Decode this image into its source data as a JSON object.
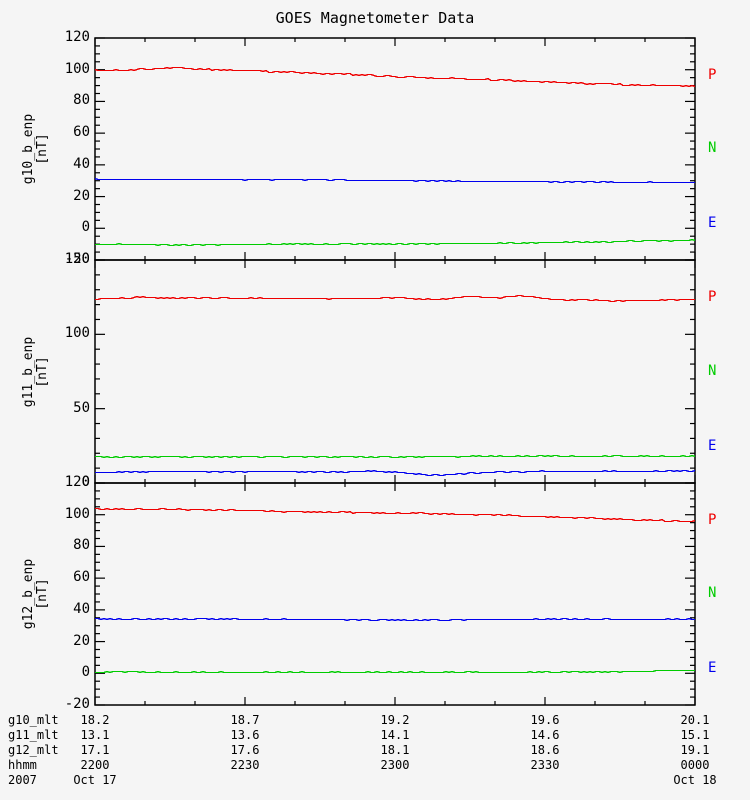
{
  "title": "GOES Magnetometer Data",
  "colors": {
    "p": "#ee0000",
    "n": "#00cc00",
    "e": "#0000ee",
    "axis": "#000000",
    "background": "#f5f5f5",
    "text": "#000000"
  },
  "xaxis": {
    "unit": "minutes after 2200",
    "xlim": [
      0,
      120
    ],
    "tick_major": 30,
    "tick_minor": 10,
    "tick_times_hhmm": [
      "2200",
      "2230",
      "2300",
      "2330",
      "0000"
    ]
  },
  "chart_data": [
    {
      "type": "line",
      "panel": "goes10",
      "ylabel": "g10_b_enp",
      "yunits": "[nT]",
      "ylim": [
        -20,
        120
      ],
      "ytick_major": 20,
      "ytick_minor": 5,
      "ytick_labels": [
        "120",
        "100",
        "80",
        "60",
        "40",
        "20",
        "0",
        "-20"
      ],
      "right_labels": [
        {
          "text": "P",
          "color_key": "p"
        },
        {
          "text": "N",
          "color_key": "n"
        },
        {
          "text": "E",
          "color_key": "e"
        }
      ],
      "series": [
        {
          "name": "P",
          "color_key": "p",
          "noise": 0.45,
          "points": [
            [
              0,
              99.9
            ],
            [
              6,
              99.7
            ],
            [
              9,
              100.8
            ],
            [
              13,
              101.1
            ],
            [
              17,
              101.2
            ],
            [
              21,
              100.6
            ],
            [
              30,
              99.8
            ],
            [
              40,
              98.6
            ],
            [
              50,
              97.4
            ],
            [
              60,
              95.9
            ],
            [
              70,
              94.9
            ],
            [
              80,
              93.9
            ],
            [
              90,
              92.6
            ],
            [
              96,
              91.9
            ],
            [
              102,
              91.3
            ],
            [
              108,
              90.7
            ],
            [
              114,
              90.3
            ],
            [
              120,
              90.2
            ]
          ]
        },
        {
          "name": "N",
          "color_key": "n",
          "noise": 0.35,
          "points": [
            [
              0,
              -9.8
            ],
            [
              10,
              -9.9
            ],
            [
              20,
              -10.1
            ],
            [
              30,
              -9.9
            ],
            [
              45,
              -9.7
            ],
            [
              60,
              -9.6
            ],
            [
              70,
              -9.4
            ],
            [
              80,
              -9.2
            ],
            [
              90,
              -8.8
            ],
            [
              100,
              -8.3
            ],
            [
              108,
              -7.8
            ],
            [
              115,
              -7.4
            ],
            [
              120,
              -7.3
            ]
          ]
        },
        {
          "name": "E",
          "color_key": "e",
          "noise": 0.3,
          "points": [
            [
              0,
              31.2
            ],
            [
              20,
              31.1
            ],
            [
              40,
              30.9
            ],
            [
              60,
              30.4
            ],
            [
              75,
              30.0
            ],
            [
              90,
              29.6
            ],
            [
              105,
              29.3
            ],
            [
              120,
              29.2
            ]
          ]
        }
      ]
    },
    {
      "type": "line",
      "panel": "goes11",
      "ylabel": "g11_b_enp",
      "yunits": "[nT]",
      "ylim": [
        0,
        150
      ],
      "ytick_major": 50,
      "ytick_minor": 10,
      "ytick_labels": [
        "150",
        "100",
        "50",
        "0"
      ],
      "right_labels": [
        {
          "text": "P",
          "color_key": "p"
        },
        {
          "text": "N",
          "color_key": "n"
        },
        {
          "text": "E",
          "color_key": "e"
        }
      ],
      "series": [
        {
          "name": "P",
          "color_key": "p",
          "noise": 0.4,
          "points": [
            [
              0,
              124.2
            ],
            [
              6,
              124.8
            ],
            [
              10,
              125.3
            ],
            [
              14,
              124.9
            ],
            [
              20,
              124.6
            ],
            [
              30,
              124.5
            ],
            [
              40,
              124.4
            ],
            [
              48,
              124.3
            ],
            [
              55,
              124.5
            ],
            [
              60,
              125.1
            ],
            [
              64,
              124.3
            ],
            [
              68,
              123.8
            ],
            [
              71,
              124.2
            ],
            [
              74,
              125.9
            ],
            [
              77,
              125.4
            ],
            [
              80,
              124.7
            ],
            [
              82,
              125.2
            ],
            [
              85,
              126.4
            ],
            [
              88,
              125.6
            ],
            [
              91,
              124.1
            ],
            [
              94,
              123.5
            ],
            [
              98,
              123.3
            ],
            [
              103,
              123.0
            ],
            [
              107,
              122.8
            ],
            [
              111,
              123.1
            ],
            [
              115,
              123.5
            ],
            [
              120,
              123.9
            ]
          ]
        },
        {
          "name": "N",
          "color_key": "n",
          "noise": 0.35,
          "points": [
            [
              0,
              17.9
            ],
            [
              15,
              18.0
            ],
            [
              30,
              17.9
            ],
            [
              45,
              18.0
            ],
            [
              60,
              17.8
            ],
            [
              70,
              18.1
            ],
            [
              80,
              18.3
            ],
            [
              90,
              18.4
            ],
            [
              100,
              18.3
            ],
            [
              110,
              18.2
            ],
            [
              120,
              18.4
            ]
          ]
        },
        {
          "name": "E",
          "color_key": "e",
          "noise": 0.35,
          "points": [
            [
              0,
              7.6
            ],
            [
              10,
              7.9
            ],
            [
              20,
              8.0
            ],
            [
              30,
              7.9
            ],
            [
              40,
              7.9
            ],
            [
              50,
              7.8
            ],
            [
              55,
              8.2
            ],
            [
              58,
              8.0
            ],
            [
              62,
              7.2
            ],
            [
              65,
              6.1
            ],
            [
              68,
              5.7
            ],
            [
              71,
              6.0
            ],
            [
              75,
              6.8
            ],
            [
              80,
              7.5
            ],
            [
              85,
              7.9
            ],
            [
              90,
              8.2
            ],
            [
              95,
              7.8
            ],
            [
              100,
              8.0
            ],
            [
              105,
              8.3
            ],
            [
              110,
              8.0
            ],
            [
              115,
              8.4
            ],
            [
              120,
              8.5
            ]
          ]
        }
      ]
    },
    {
      "type": "line",
      "panel": "goes12",
      "ylabel": "g12_b_enp",
      "yunits": "[nT]",
      "ylim": [
        -20,
        120
      ],
      "ytick_major": 20,
      "ytick_minor": 5,
      "ytick_labels": [
        "120",
        "100",
        "80",
        "60",
        "40",
        "20",
        "0",
        "-20"
      ],
      "right_labels": [
        {
          "text": "P",
          "color_key": "p"
        },
        {
          "text": "N",
          "color_key": "n"
        },
        {
          "text": "E",
          "color_key": "e"
        }
      ],
      "series": [
        {
          "name": "P",
          "color_key": "p",
          "noise": 0.4,
          "points": [
            [
              0,
              104.0
            ],
            [
              10,
              103.8
            ],
            [
              20,
              103.6
            ],
            [
              30,
              103.0
            ],
            [
              36,
              102.4
            ],
            [
              45,
              102.0
            ],
            [
              55,
              101.6
            ],
            [
              60,
              101.2
            ],
            [
              66,
              101.3
            ],
            [
              70,
              100.8
            ],
            [
              75,
              100.2
            ],
            [
              78,
              100.5
            ],
            [
              82,
              100.0
            ],
            [
              86,
              99.4
            ],
            [
              90,
              99.0
            ],
            [
              94,
              98.6
            ],
            [
              100,
              98.3
            ],
            [
              104,
              97.5
            ],
            [
              110,
              97.0
            ],
            [
              115,
              96.4
            ],
            [
              118,
              96.2
            ],
            [
              120,
              96.7
            ]
          ]
        },
        {
          "name": "N",
          "color_key": "n",
          "noise": 0.3,
          "points": [
            [
              0,
              1.3
            ],
            [
              10,
              1.1
            ],
            [
              20,
              0.9
            ],
            [
              30,
              0.8
            ],
            [
              40,
              0.9
            ],
            [
              50,
              1.0
            ],
            [
              60,
              1.0
            ],
            [
              70,
              0.9
            ],
            [
              80,
              1.0
            ],
            [
              90,
              1.1
            ],
            [
              100,
              1.2
            ],
            [
              108,
              1.4
            ],
            [
              114,
              1.8
            ],
            [
              120,
              2.1
            ]
          ]
        },
        {
          "name": "E",
          "color_key": "e",
          "noise": 0.3,
          "points": [
            [
              0,
              34.6
            ],
            [
              15,
              34.5
            ],
            [
              30,
              34.4
            ],
            [
              45,
              34.3
            ],
            [
              55,
              34.0
            ],
            [
              65,
              33.9
            ],
            [
              75,
              34.1
            ],
            [
              85,
              34.3
            ],
            [
              95,
              34.4
            ],
            [
              105,
              34.3
            ],
            [
              115,
              34.4
            ],
            [
              120,
              34.5
            ]
          ]
        }
      ]
    }
  ],
  "footer": {
    "rows": [
      {
        "label": "g10_mlt",
        "values": [
          "18.2",
          "18.7",
          "19.2",
          "19.6",
          "20.1"
        ]
      },
      {
        "label": "g11_mlt",
        "values": [
          "13.1",
          "13.6",
          "14.1",
          "14.6",
          "15.1"
        ]
      },
      {
        "label": "g12_mlt",
        "values": [
          "17.1",
          "17.6",
          "18.1",
          "18.6",
          "19.1"
        ]
      },
      {
        "label": "hhmm",
        "values": [
          "2200",
          "2230",
          "2300",
          "2330",
          "0000"
        ]
      },
      {
        "label": "2007",
        "values": [
          "Oct 17",
          "",
          "",
          "",
          "Oct 18"
        ]
      }
    ]
  }
}
